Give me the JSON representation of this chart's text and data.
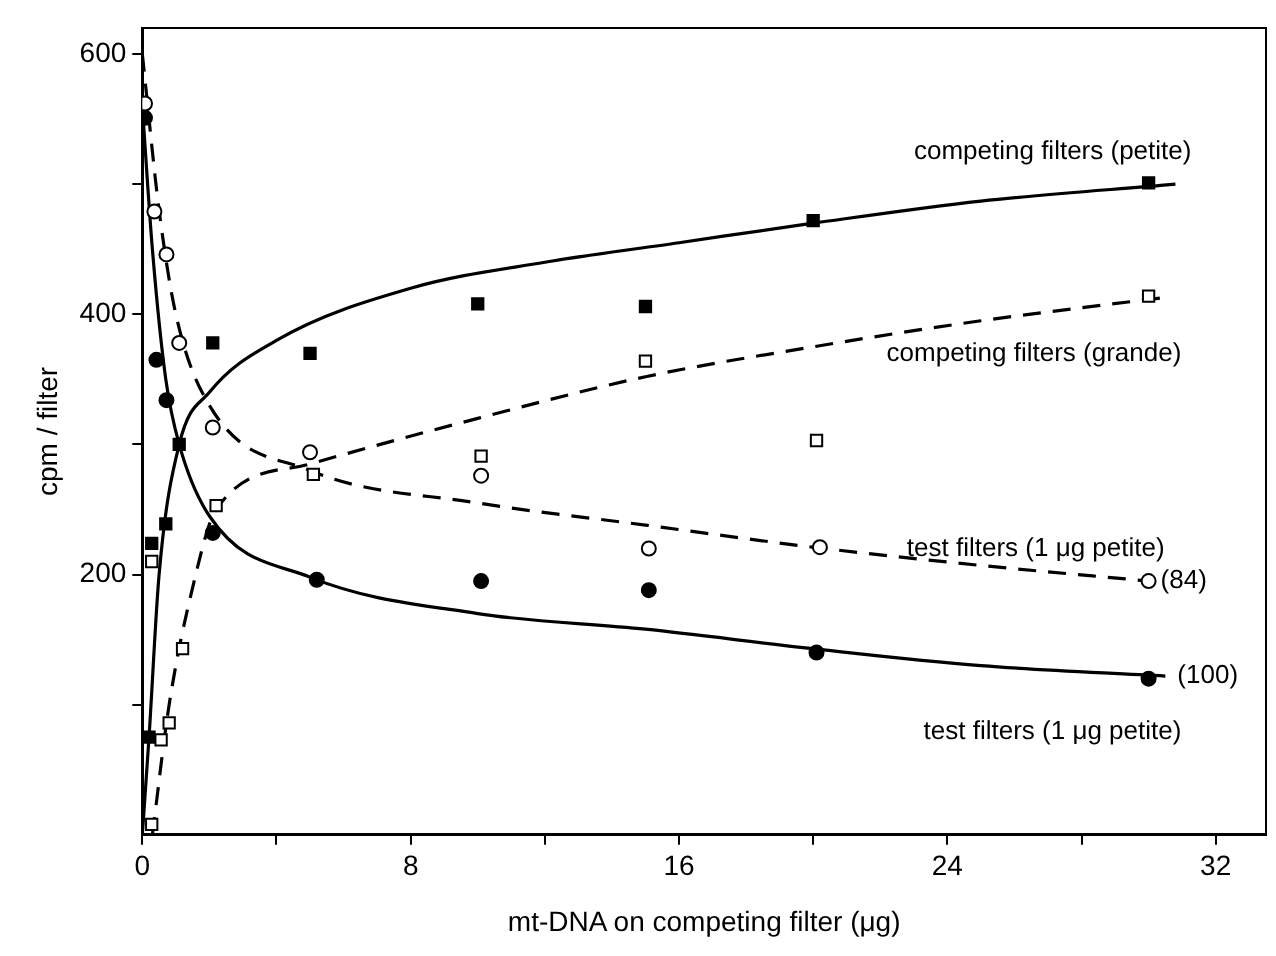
{
  "chart_data": {
    "type": "scatter",
    "xlabel": "mt-DNA on competing filter (μg)",
    "ylabel": "cpm / filter",
    "xlim": [
      0,
      33.5
    ],
    "ylim": [
      0,
      620
    ],
    "xticks": [
      0,
      {
        "value": 4,
        "label": null
      },
      8,
      {
        "value": 12,
        "label": null
      },
      16,
      {
        "value": 20,
        "label": null
      },
      24,
      {
        "value": 28,
        "label": null
      },
      32
    ],
    "yticks": [
      {
        "value": 100,
        "label": null
      },
      200,
      {
        "value": 300,
        "label": null
      },
      400,
      {
        "value": 500,
        "label": null
      },
      600
    ],
    "grid": false,
    "legend": false,
    "annotations": [
      {
        "text": "(84)",
        "x": 30,
        "y": 195
      },
      {
        "text": "(100)",
        "x": 30.5,
        "y": 122
      }
    ],
    "series": [
      {
        "marker": "square",
        "color": "#000000",
        "x": [
          0.2,
          0.28,
          0.7,
          1.1,
          2.1,
          5,
          10,
          15,
          20,
          30
        ],
        "values": [
          75,
          224,
          239,
          300,
          378,
          370,
          408,
          406,
          472,
          501
        ]
      },
      {
        "marker": "square",
        "color": "#ffffff",
        "x": [
          0.28,
          0.28,
          0.56,
          0.8,
          1.2,
          2.2,
          5.1,
          10.1,
          15,
          20.1,
          30
        ],
        "values": [
          8,
          210,
          73,
          86,
          143,
          253,
          277,
          291,
          364,
          303,
          414
        ]
      },
      {
        "marker": "circle",
        "color": "#ffffff",
        "x": [
          0.08,
          0.36,
          0.72,
          1.1,
          2.1,
          5,
          10.1,
          15.1,
          20.2,
          30
        ],
        "values": [
          562,
          479,
          446,
          378,
          313,
          294,
          276,
          220,
          221,
          195
        ]
      },
      {
        "marker": "circle",
        "color": "#000000",
        "x": [
          0.08,
          0.42,
          0.72,
          1.1,
          2.1,
          5.2,
          10.1,
          15.1,
          20.1,
          30
        ],
        "values": [
          551,
          365,
          334,
          null,
          232,
          196,
          195,
          188,
          140,
          120
        ]
      },
      {
        "type": "line",
        "name": "competing filters (petite)",
        "color": "#000000",
        "line_style": "solid",
        "marker": "none",
        "x": [
          0,
          0.2,
          0.5,
          1.1,
          2,
          4,
          8,
          12,
          16,
          20,
          25,
          30.8
        ],
        "values": [
          0,
          75,
          200,
          300,
          340,
          380,
          420,
          440,
          455,
          470,
          487,
          500
        ]
      },
      {
        "type": "line",
        "name": "competing filters (grande)",
        "color": "#000000",
        "line_style": "dashed",
        "marker": "none",
        "x": [
          0.3,
          0.8,
          1.5,
          2.2,
          5,
          10,
          15,
          20,
          25,
          30.5
        ],
        "values": [
          0,
          100,
          190,
          250,
          285,
          320,
          352,
          375,
          395,
          413
        ]
      },
      {
        "type": "line",
        "name": "test filters (1 μg petite)",
        "color": "#000000",
        "line_style": "dashed",
        "marker": "none",
        "x": [
          0,
          0.5,
          1,
          2,
          5,
          10,
          15,
          20,
          25,
          30
        ],
        "values": [
          600,
          480,
          400,
          330,
          280,
          255,
          238,
          221,
          207,
          195
        ]
      },
      {
        "type": "line",
        "name": "test filters (1 μg petite)",
        "color": "#000000",
        "line_style": "solid",
        "marker": "none",
        "x": [
          0,
          0.3,
          0.7,
          1.1,
          2,
          5,
          10,
          15,
          20,
          25,
          30.5
        ],
        "values": [
          560,
          450,
          350,
          300,
          245,
          198,
          170,
          158,
          143,
          130,
          122
        ]
      }
    ]
  }
}
